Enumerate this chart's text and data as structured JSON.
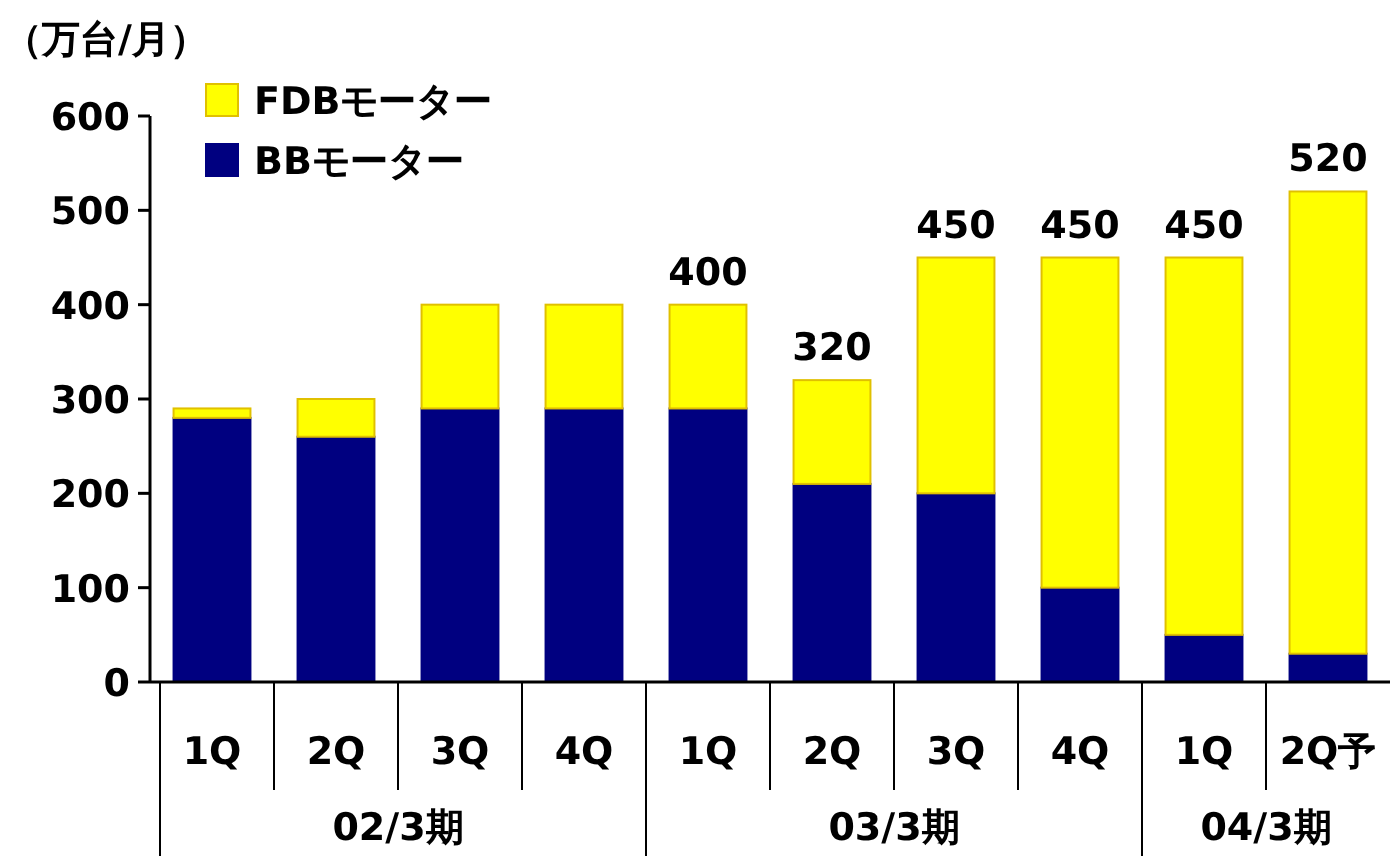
{
  "chart_data": {
    "type": "bar",
    "stacked": true,
    "ylabel": "（万台/月）",
    "categories": [
      "1Q",
      "2Q",
      "3Q",
      "4Q",
      "1Q",
      "2Q",
      "3Q",
      "4Q",
      "1Q",
      "2Q予"
    ],
    "series": [
      {
        "name": "BBモーター",
        "color": "#000080",
        "values": [
          280,
          260,
          290,
          290,
          290,
          210,
          200,
          100,
          50,
          30
        ]
      },
      {
        "name": "FDBモーター",
        "color": "#ffff00",
        "values": [
          10,
          40,
          110,
          110,
          110,
          110,
          250,
          350,
          400,
          490
        ]
      }
    ],
    "totals": [
      null,
      null,
      null,
      null,
      "400",
      "320",
      "450",
      "450",
      "450",
      "520"
    ],
    "annotations": [
      "02/3期",
      "03/3期",
      "04/3期"
    ],
    "ylim": [
      0,
      600
    ],
    "yticks": [
      0,
      100,
      200,
      300,
      400,
      500,
      600
    ],
    "legend": "top left",
    "grid": false
  }
}
